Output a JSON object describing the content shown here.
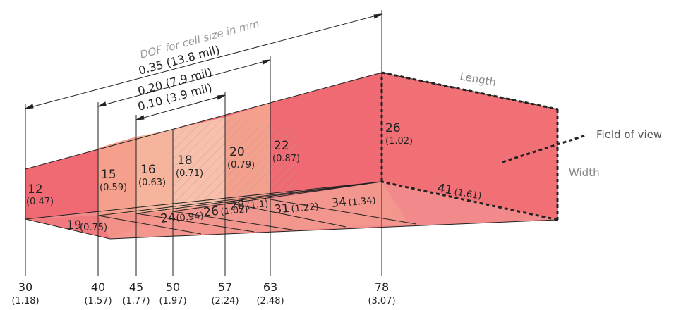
{
  "colors": {
    "far_face": "#f07075",
    "main": "#ef6a72",
    "bottom": "#f28a8c",
    "zone_light": "#f6b49d",
    "zone_mid": "#f4a08c",
    "zone_pale": "#f8c0aa",
    "zone_red": "#ee6e76",
    "line": "#222222",
    "dashed": "#222222"
  },
  "title": "DOF for cell size in mm",
  "dof_ranges": [
    {
      "label": "0.35 (13.8 mil)"
    },
    {
      "label": "0.20 (7.9 mil)"
    },
    {
      "label": "0.10  (3.9 mil)"
    }
  ],
  "distance_ticks": [
    {
      "mm": "30",
      "inch": "(1.18)"
    },
    {
      "mm": "40",
      "inch": "(1.57)"
    },
    {
      "mm": "45",
      "inch": "(1.77)"
    },
    {
      "mm": "50",
      "inch": "(1.97)"
    },
    {
      "mm": "57",
      "inch": "(2.24)"
    },
    {
      "mm": "63",
      "inch": "(2.48)"
    },
    {
      "mm": "78",
      "inch": "(3.07)"
    }
  ],
  "heights": [
    {
      "mm": "12",
      "inch": "(0.47)"
    },
    {
      "mm": "15",
      "inch": "(0.59)"
    },
    {
      "mm": "16",
      "inch": "(0.63)"
    },
    {
      "mm": "18",
      "inch": "(0.71)"
    },
    {
      "mm": "20",
      "inch": "(0.79)"
    },
    {
      "mm": "22",
      "inch": "(0.87)"
    },
    {
      "mm": "26",
      "inch": "(1.02)"
    }
  ],
  "widths": [
    {
      "mm": "19",
      "inch": "(0.75)"
    },
    {
      "mm": "24",
      "inch": "(0.94)"
    },
    {
      "mm": "26",
      "inch": "(1.02)"
    },
    {
      "mm": "28",
      "inch": "(1.1)"
    },
    {
      "mm": "31",
      "inch": "(1.22)"
    },
    {
      "mm": "34",
      "inch": "(1.34)"
    },
    {
      "mm": "41",
      "inch": "(1.61)"
    }
  ],
  "labels": {
    "length": "Length",
    "width": "Width",
    "field_of_view": "Field of view"
  }
}
